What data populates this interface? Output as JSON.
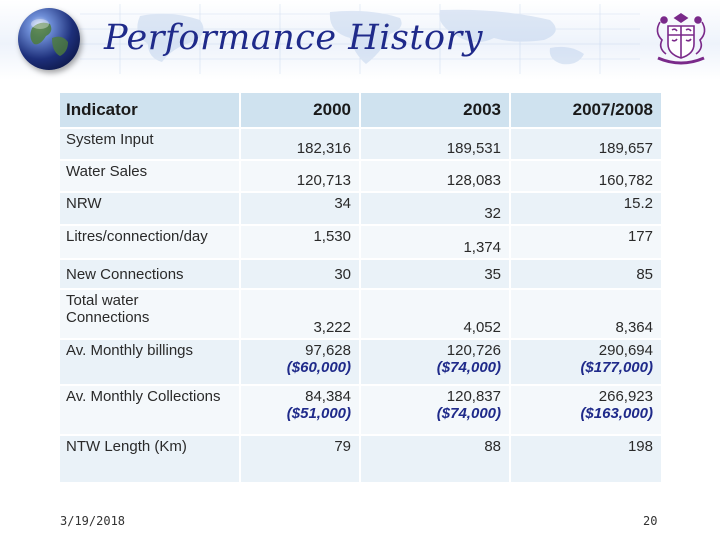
{
  "slide": {
    "title": "Performance History",
    "date": "3/19/2018",
    "page_number": "20",
    "accent_color": "#1f2a8a",
    "header_color": "#cfe2ef",
    "logo_icon": "crest-icon",
    "globe_icon": "globe-icon"
  },
  "table": {
    "headers": [
      "Indicator",
      "2000",
      "2003",
      "2007/2008"
    ],
    "rows": [
      {
        "indicator": "System Input",
        "v2000": "182,316",
        "v2003": "189,531",
        "v2007": "189,657"
      },
      {
        "indicator": "Water Sales",
        "v2000": "120,713",
        "v2003": "128,083",
        "v2007": "160,782"
      },
      {
        "indicator": "NRW",
        "v2000": "34",
        "v2003": "32",
        "v2007": "15.2"
      },
      {
        "indicator": "Litres/connection/day",
        "v2000": "1,530",
        "v2003": "1,374",
        "v2007": "177"
      },
      {
        "indicator": "New Connections",
        "v2000": "30",
        "v2003": "35",
        "v2007": "85"
      },
      {
        "indicator_line1": "Total water",
        "indicator_line2": "Connections",
        "v2000": "3,222",
        "v2003": "4,052",
        "v2007": "8,364"
      },
      {
        "indicator": "Av. Monthly billings",
        "v2000": "97,628",
        "usd2000": "($60,000)",
        "v2003": "120,726",
        "usd2003": "($74,000)",
        "v2007": "290,694",
        "usd2007": "($177,000)"
      },
      {
        "indicator": "Av. Monthly Collections",
        "v2000": "84,384",
        "usd2000": "($51,000)",
        "v2003": "120,837",
        "usd2003": "($74,000)",
        "v2007": "266,923",
        "usd2007": "($163,000)"
      },
      {
        "indicator": "NTW Length (Km)",
        "v2000": "79",
        "v2003": "88",
        "v2007": "198"
      }
    ]
  }
}
